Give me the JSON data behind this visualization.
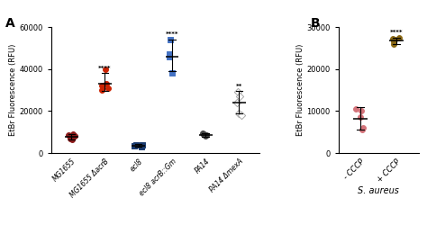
{
  "panel_A": {
    "groups": [
      "MG1655",
      "MG1655 ΔacrB",
      "ecl8",
      "ecl8 acrB::Gm",
      "PA14",
      "PA14 ΔmexA"
    ],
    "colors": [
      "#8B1A1A",
      "#CC2200",
      "#1a3a6e",
      "#4472c4",
      "#444444",
      "#aaaaaa"
    ],
    "marker_styles": [
      "o",
      "o",
      "s",
      "s",
      "o",
      "D"
    ],
    "filled": [
      true,
      true,
      true,
      true,
      true,
      false
    ],
    "data_points": [
      [
        7000,
        8000,
        9000,
        6500,
        8500
      ],
      [
        32000,
        30000,
        31000,
        40000,
        33000
      ],
      [
        3500,
        3800,
        3200,
        4000
      ],
      [
        47000,
        46000,
        54000,
        38000
      ],
      [
        8000,
        9000,
        8500,
        9500,
        8800
      ],
      [
        29000,
        19000,
        18000,
        24000,
        27000
      ]
    ],
    "means": [
      7800,
      33000,
      3600,
      46000,
      8700,
      24000
    ],
    "sd_low": [
      6500,
      29500,
      3100,
      39000,
      7800,
      19000
    ],
    "sd_high": [
      9000,
      38000,
      4100,
      54000,
      9500,
      29500
    ],
    "significance": [
      "",
      "****",
      "",
      "****",
      "",
      "**"
    ],
    "ylim": [
      0,
      60000
    ],
    "yticks": [
      0,
      20000,
      40000,
      60000
    ],
    "ylabel": "EtBr Fluorescence (RFU)"
  },
  "panel_B": {
    "groups": [
      "- CCCP",
      "+ CCCP"
    ],
    "colors": [
      "#d4737a",
      "#8B6914"
    ],
    "marker_styles": [
      "o",
      "o"
    ],
    "data_points": [
      [
        6000,
        10500,
        10000,
        5500,
        8500
      ],
      [
        27000,
        26000,
        27500,
        26500,
        27200
      ]
    ],
    "means": [
      8200,
      26800
    ],
    "sd_low": [
      5500,
      26000
    ],
    "sd_high": [
      11000,
      27500
    ],
    "significance": [
      "",
      "****"
    ],
    "ylim": [
      0,
      30000
    ],
    "yticks": [
      0,
      10000,
      20000,
      30000
    ],
    "ylabel": "EtBr Fluorescence (RFU)",
    "xlabel": "S. aureus"
  }
}
